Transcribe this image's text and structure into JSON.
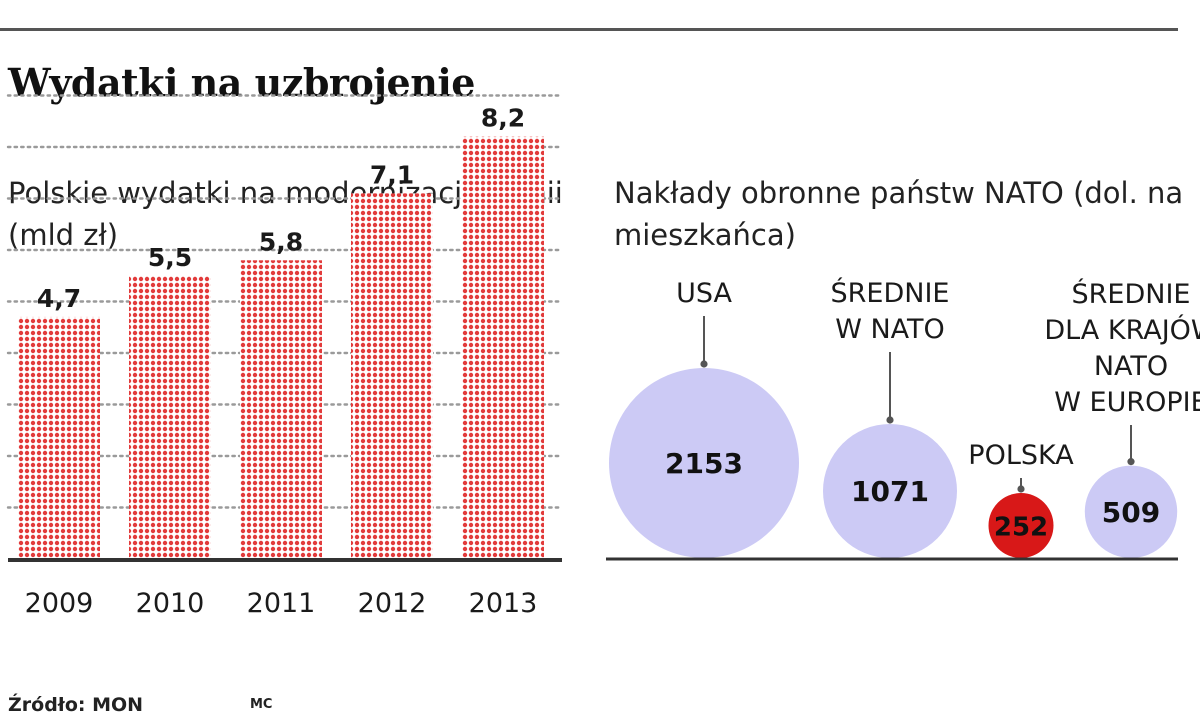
{
  "title": "Wydatki na uzbrojenie",
  "source": "Źródło: MON",
  "author": "MC",
  "colors": {
    "bar_dot": "#e23b3b",
    "bubble": "#cccaf5",
    "highlight": "#d81818",
    "grid_dot": "#9a9a9a",
    "baseline": "#333333",
    "rule": "#555555"
  },
  "chart_data": [
    {
      "type": "bar",
      "title": "Polskie wydatki na modernizację armii (mld zł)",
      "categories": [
        "2009",
        "2010",
        "2011",
        "2012",
        "2013"
      ],
      "values": [
        4.7,
        5.5,
        5.8,
        7.1,
        8.2
      ],
      "value_labels": [
        "4,7",
        "5,5",
        "5,8",
        "7,1",
        "8,2"
      ],
      "ylim": [
        0,
        10
      ],
      "grid": true,
      "xlabel": "",
      "ylabel": ""
    },
    {
      "type": "bubble",
      "title": "Nakłady obronne państw NATO (dol. na mieszkańca)",
      "items": [
        {
          "label": [
            "USA"
          ],
          "value": 2153,
          "value_label": "2153",
          "highlight": false
        },
        {
          "label": [
            "ŚREDNIE",
            "W NATO"
          ],
          "value": 1071,
          "value_label": "1071",
          "highlight": false
        },
        {
          "label": [
            "POLSKA"
          ],
          "value": 252,
          "value_label": "252",
          "highlight": true
        },
        {
          "label": [
            "ŚREDNIE",
            "DLA KRAJÓW",
            "NATO",
            "W EUROPIE"
          ],
          "value": 509,
          "value_label": "509",
          "highlight": false
        }
      ]
    }
  ]
}
